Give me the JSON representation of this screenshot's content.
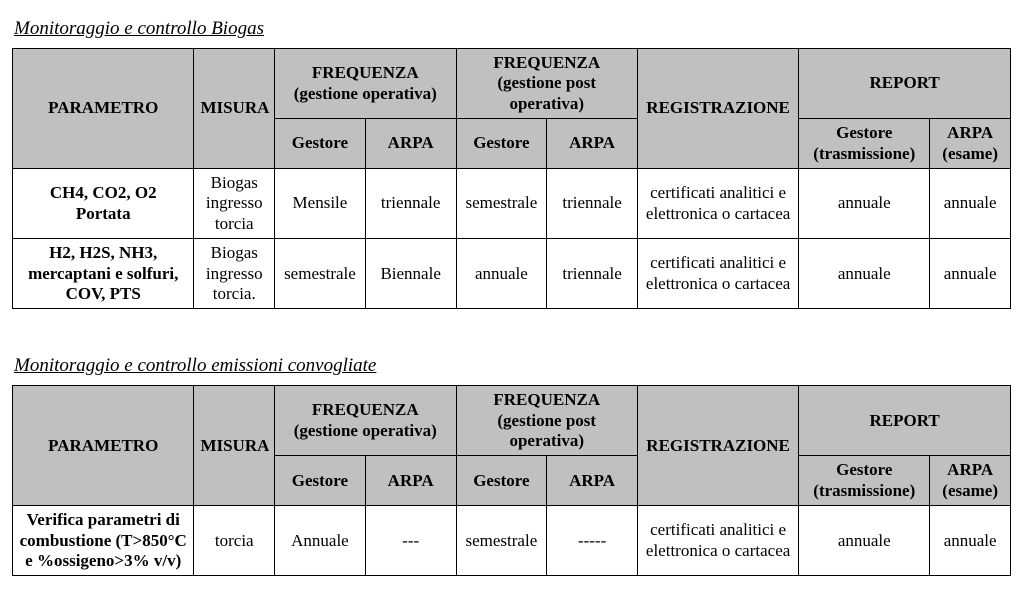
{
  "tables": [
    {
      "title": "Monitoraggio e controllo Biogas",
      "col_widths": [
        "180px",
        "80px",
        "90px",
        "90px",
        "90px",
        "90px",
        "160px",
        "130px",
        "80px"
      ],
      "headers": {
        "parametro": "PARAMETRO",
        "misura": "MISURA",
        "freq_op": "FREQUENZA (gestione operativa)",
        "freq_post": "FREQUENZA (gestione post operativa)",
        "reg": "REGISTRAZIONE",
        "report": "REPORT",
        "gestore": "Gestore",
        "arpa": "ARPA",
        "gestore_tras": "Gestore (trasmissione)",
        "arpa_esame": "ARPA (esame)"
      },
      "rows": [
        {
          "param_lines": [
            "CH4, CO2, O2",
            "Portata"
          ],
          "param_bold": true,
          "misura": "Biogas ingresso torcia",
          "freq_op_g": "Mensile",
          "freq_op_a": "triennale",
          "freq_post_g": "semestrale",
          "freq_post_a": "triennale",
          "reg": "certificati analitici e elettronica o cartacea",
          "rep_g": "annuale",
          "rep_a": "annuale"
        },
        {
          "param_lines": [
            "H2, H2S, NH3, mercaptani e solfuri, COV, PTS"
          ],
          "param_bold": true,
          "misura": "Biogas ingresso torcia.",
          "freq_op_g": "semestrale",
          "freq_op_a": "Biennale",
          "freq_post_g": "annuale",
          "freq_post_a": "triennale",
          "reg": "certificati analitici e elettronica o cartacea",
          "rep_g": "annuale",
          "rep_a": "annuale"
        }
      ]
    },
    {
      "title": "Monitoraggio e controllo emissioni convogliate",
      "col_widths": [
        "180px",
        "80px",
        "90px",
        "90px",
        "90px",
        "90px",
        "160px",
        "130px",
        "80px"
      ],
      "headers": {
        "parametro": "PARAMETRO",
        "misura": "MISURA",
        "freq_op": "FREQUENZA (gestione operativa)",
        "freq_post": "FREQUENZA (gestione post operativa)",
        "reg": "REGISTRAZIONE",
        "report": "REPORT",
        "gestore": "Gestore",
        "arpa": "ARPA",
        "gestore_tras": "Gestore (trasmissione)",
        "arpa_esame": "ARPA (esame)"
      },
      "rows": [
        {
          "param_lines": [
            "Verifica parametri di combustione (T>850°C e %ossigeno>3% v/v)"
          ],
          "param_bold": true,
          "misura": "torcia",
          "freq_op_g": "Annuale",
          "freq_op_a": "---",
          "freq_post_g": "semestrale",
          "freq_post_a": "-----",
          "reg": "certificati analitici e elettronica o cartacea",
          "rep_g": "annuale",
          "rep_a": "annuale"
        }
      ]
    }
  ]
}
